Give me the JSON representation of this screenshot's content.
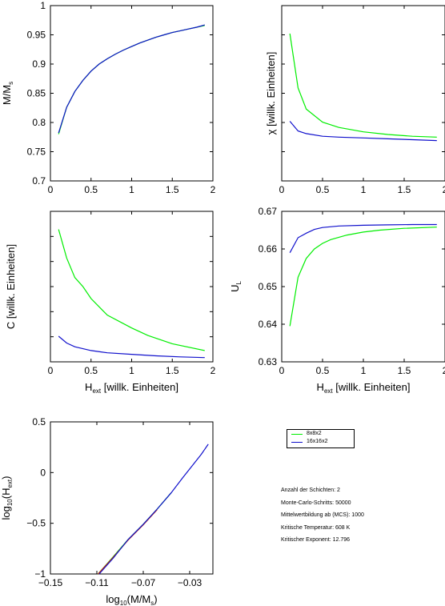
{
  "colors": {
    "green": "#00ee00",
    "blue": "#1010cc",
    "red": "#cc2200",
    "axis": "#000000"
  },
  "chart_data": [
    {
      "id": "m",
      "type": "line",
      "xlabel": "",
      "ylabel": "M/M",
      "ylabel_sub": "s",
      "xlim": [
        0,
        2
      ],
      "ylim": [
        0.7,
        1
      ],
      "xticks": [
        "0",
        "0.5",
        "1",
        "1.5",
        "2"
      ],
      "yticks": [
        "0.7",
        "0.75",
        "0.8",
        "0.85",
        "0.9",
        "0.95",
        "1"
      ],
      "series": [
        {
          "name": "8x8x2",
          "color": "green",
          "x": [
            0.1,
            0.2,
            0.3,
            0.4,
            0.5,
            0.6,
            0.7,
            0.8,
            0.9,
            1.0,
            1.1,
            1.2,
            1.3,
            1.4,
            1.5,
            1.6,
            1.7,
            1.8,
            1.9
          ],
          "y": [
            0.78,
            0.826,
            0.853,
            0.872,
            0.888,
            0.9,
            0.909,
            0.917,
            0.924,
            0.93,
            0.936,
            0.941,
            0.946,
            0.95,
            0.954,
            0.957,
            0.96,
            0.963,
            0.966
          ]
        },
        {
          "name": "16x16x2",
          "color": "blue",
          "x": [
            0.1,
            0.2,
            0.3,
            0.4,
            0.5,
            0.6,
            0.7,
            0.8,
            0.9,
            1.0,
            1.1,
            1.2,
            1.3,
            1.4,
            1.5,
            1.6,
            1.7,
            1.8,
            1.9
          ],
          "y": [
            0.782,
            0.826,
            0.853,
            0.872,
            0.888,
            0.9,
            0.909,
            0.917,
            0.924,
            0.93,
            0.936,
            0.941,
            0.946,
            0.95,
            0.954,
            0.957,
            0.96,
            0.963,
            0.967
          ]
        }
      ]
    },
    {
      "id": "chi",
      "type": "line",
      "xlabel": "",
      "ylabel": "χ [willk. Einheiten]",
      "xlim": [
        0,
        2
      ],
      "ylim": [
        0,
        10
      ],
      "xticks": [
        "0",
        "0.5",
        "1",
        "1.5",
        "2"
      ],
      "yticks": [],
      "series": [
        {
          "name": "8x8x2",
          "color": "green",
          "x": [
            0.1,
            0.2,
            0.3,
            0.5,
            0.7,
            1.0,
            1.3,
            1.6,
            1.9
          ],
          "y": [
            8.4,
            5.3,
            4.1,
            3.35,
            3.05,
            2.8,
            2.65,
            2.55,
            2.5
          ]
        },
        {
          "name": "16x16x2",
          "color": "blue",
          "x": [
            0.1,
            0.2,
            0.3,
            0.5,
            0.7,
            1.0,
            1.3,
            1.6,
            1.9
          ],
          "y": [
            3.4,
            2.85,
            2.7,
            2.55,
            2.5,
            2.45,
            2.4,
            2.35,
            2.3
          ]
        }
      ]
    },
    {
      "id": "c",
      "type": "line",
      "xlabel": "H",
      "xlabel_sub": "ext",
      "xlabel_rest": " [willk. Einheiten]",
      "ylabel": "C [willk. Einheiten]",
      "xlim": [
        0,
        2
      ],
      "ylim": [
        0,
        10
      ],
      "xticks": [
        "0",
        "0.5",
        "1",
        "1.5",
        "2"
      ],
      "yticks": [],
      "series": [
        {
          "name": "8x8x2",
          "color": "green",
          "x": [
            0.1,
            0.2,
            0.3,
            0.4,
            0.5,
            0.7,
            1.0,
            1.2,
            1.5,
            1.9
          ],
          "y": [
            8.8,
            6.9,
            5.6,
            5.0,
            4.2,
            3.1,
            2.25,
            1.75,
            1.2,
            0.75
          ]
        },
        {
          "name": "16x16x2",
          "color": "blue",
          "x": [
            0.1,
            0.2,
            0.3,
            0.5,
            0.7,
            1.0,
            1.3,
            1.6,
            1.9
          ],
          "y": [
            1.7,
            1.25,
            1.0,
            0.75,
            0.6,
            0.5,
            0.4,
            0.33,
            0.28
          ]
        }
      ]
    },
    {
      "id": "ul",
      "type": "line",
      "xlabel": "H",
      "xlabel_sub": "ext",
      "xlabel_rest": " [willk. Einheiten]",
      "ylabel": "U",
      "ylabel_sub": "L",
      "xlim": [
        0,
        2
      ],
      "ylim": [
        0.63,
        0.67
      ],
      "xticks": [
        "0",
        "0.5",
        "1",
        "1.5",
        "2"
      ],
      "yticks": [
        "0.63",
        "0.64",
        "0.65",
        "0.66",
        "0.67"
      ],
      "series": [
        {
          "name": "8x8x2",
          "color": "green",
          "x": [
            0.1,
            0.2,
            0.3,
            0.4,
            0.5,
            0.6,
            0.8,
            1.0,
            1.2,
            1.5,
            1.9
          ],
          "y": [
            0.6395,
            0.6525,
            0.6575,
            0.66,
            0.6615,
            0.6625,
            0.6637,
            0.6645,
            0.665,
            0.6655,
            0.6658
          ]
        },
        {
          "name": "16x16x2",
          "color": "blue",
          "x": [
            0.1,
            0.2,
            0.3,
            0.4,
            0.5,
            0.7,
            1.0,
            1.3,
            1.6,
            1.9
          ],
          "y": [
            0.659,
            0.663,
            0.6642,
            0.6652,
            0.6657,
            0.6661,
            0.6663,
            0.6664,
            0.6665,
            0.6665
          ]
        }
      ]
    },
    {
      "id": "log",
      "type": "line",
      "xlabel": "log",
      "xlabel_sub": "10",
      "xlabel_rest": "(M/M",
      "xlabel_sub2": "s",
      "xlabel_end": ")",
      "ylabel": "log",
      "ylabel_sub": "10",
      "ylabel_rest": "(H",
      "ylabel_sub2": "ext",
      "ylabel_end": ")",
      "xlim": [
        -0.15,
        -0.01
      ],
      "ylim": [
        -1,
        0.5
      ],
      "xticks": [
        "−0.15",
        "−0.11",
        "−0.07",
        "−0.03"
      ],
      "xtick_values": [
        -0.15,
        -0.11,
        -0.07,
        -0.03
      ],
      "yticks": [
        "−1",
        "−0.5",
        "0",
        "0.5"
      ],
      "ytick_values": [
        -1,
        -0.5,
        0,
        0.5
      ],
      "series": [
        {
          "name": "8x8x2",
          "color": "green",
          "x": [
            -0.109,
            -0.097,
            -0.083,
            -0.07,
            -0.058,
            -0.046
          ],
          "y": [
            -1.0,
            -0.845,
            -0.66,
            -0.51,
            -0.36,
            -0.2
          ]
        },
        {
          "name": "red",
          "color": "red",
          "x": [
            -0.109,
            -0.097,
            -0.083,
            -0.07,
            -0.058
          ],
          "y": [
            -1.0,
            -0.85,
            -0.665,
            -0.515,
            -0.365
          ]
        },
        {
          "name": "16x16x2",
          "color": "blue",
          "x": [
            -0.108,
            -0.096,
            -0.083,
            -0.07,
            -0.058,
            -0.046,
            -0.036,
            -0.027,
            -0.02,
            -0.014
          ],
          "y": [
            -1.0,
            -0.845,
            -0.66,
            -0.51,
            -0.36,
            -0.2,
            -0.05,
            0.08,
            0.18,
            0.28
          ]
        }
      ]
    }
  ],
  "legend": [
    {
      "label": "8x8x2",
      "color": "green"
    },
    {
      "label": "16x16x2",
      "color": "blue"
    }
  ],
  "info_lines": [
    "Anzahl der Schichten: 2",
    "Monte-Carlo-Schritts: 50000",
    "Mittelwertbildung ab (MCS): 1000",
    "Kritische Temperatur: 608 K",
    "Kritischer Exponent: 12.796"
  ]
}
